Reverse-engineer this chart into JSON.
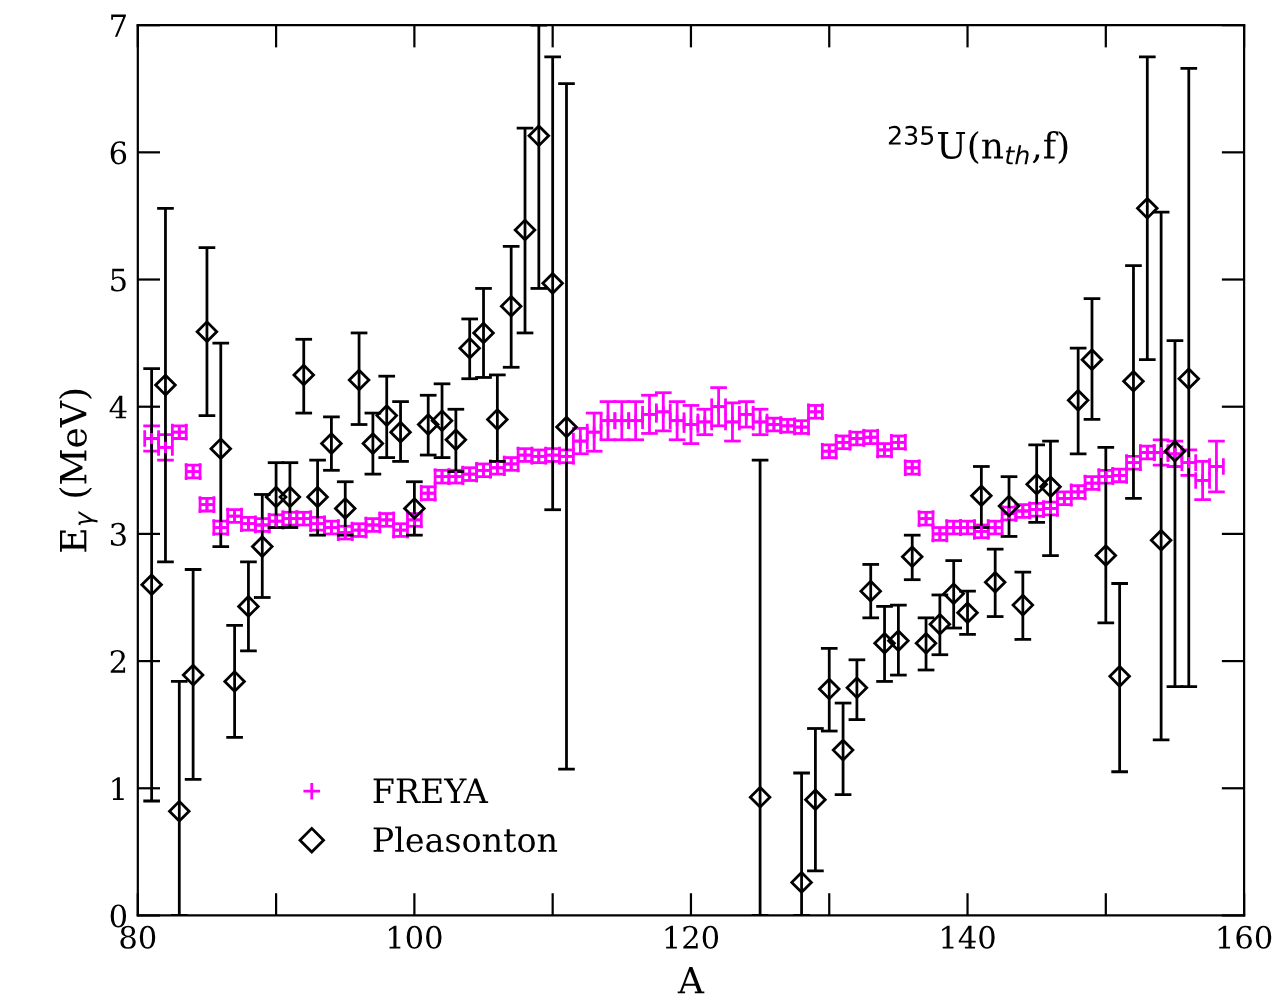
{
  "chart_data": {
    "type": "scatter",
    "xlabel": "A",
    "ylabel": "E$_{γ}$ (MeV)",
    "annotations": [
      "$^{235}$U(n$_{th}$,f)"
    ],
    "xlim": [
      80,
      160
    ],
    "ylim": [
      0,
      7
    ],
    "xticks": [
      80,
      {
        "value": 90,
        "label": null
      },
      100,
      {
        "value": 110,
        "label": null
      },
      120,
      {
        "value": 130,
        "label": null
      },
      140,
      {
        "value": 150,
        "label": null
      },
      160
    ],
    "yticks": [
      0,
      1,
      2,
      3,
      4,
      5,
      6,
      7
    ],
    "grid": false,
    "legend": "bottom left",
    "series": [
      {
        "name": "FREYA",
        "color": "#ff00ff",
        "marker": "cross",
        "x": [
          81,
          82,
          83,
          84,
          85,
          86,
          87,
          88,
          89,
          90,
          91,
          92,
          93,
          94,
          95,
          96,
          97,
          98,
          99,
          100,
          101,
          102,
          103,
          104,
          105,
          106,
          107,
          108,
          109,
          110,
          111,
          112,
          113,
          114,
          115,
          116,
          117,
          118,
          119,
          120,
          121,
          122,
          123,
          124,
          125,
          126,
          127,
          128,
          129,
          130,
          131,
          132,
          133,
          134,
          135,
          136,
          137,
          138,
          139,
          140,
          141,
          142,
          143,
          144,
          145,
          146,
          147,
          148,
          149,
          150,
          151,
          152,
          153,
          154,
          155,
          156,
          157,
          158
        ],
        "values": [
          3.75,
          3.68,
          3.8,
          3.49,
          3.23,
          3.05,
          3.14,
          3.08,
          3.07,
          3.1,
          3.12,
          3.12,
          3.08,
          3.05,
          3.01,
          3.03,
          3.07,
          3.11,
          3.03,
          3.11,
          3.32,
          3.45,
          3.45,
          3.47,
          3.5,
          3.52,
          3.55,
          3.62,
          3.61,
          3.62,
          3.61,
          3.73,
          3.8,
          3.89,
          3.89,
          3.89,
          3.94,
          3.96,
          3.89,
          3.86,
          3.88,
          4.0,
          3.88,
          3.94,
          3.88,
          3.86,
          3.85,
          3.84,
          3.96,
          3.65,
          3.72,
          3.75,
          3.76,
          3.66,
          3.72,
          3.52,
          3.12,
          3.0,
          3.05,
          3.05,
          3.02,
          3.05,
          3.16,
          3.18,
          3.19,
          3.2,
          3.28,
          3.33,
          3.4,
          3.45,
          3.46,
          3.56,
          3.64,
          3.64,
          3.63,
          3.56,
          3.42,
          3.53
        ],
        "errors": [
          0.1,
          0.1,
          0.05,
          0.05,
          0.05,
          0.05,
          0.05,
          0.05,
          0.05,
          0.05,
          0.05,
          0.05,
          0.05,
          0.05,
          0.05,
          0.05,
          0.05,
          0.05,
          0.05,
          0.05,
          0.05,
          0.05,
          0.05,
          0.05,
          0.05,
          0.05,
          0.05,
          0.05,
          0.05,
          0.05,
          0.05,
          0.1,
          0.15,
          0.15,
          0.15,
          0.15,
          0.15,
          0.15,
          0.15,
          0.15,
          0.1,
          0.15,
          0.15,
          0.1,
          0.1,
          0.05,
          0.05,
          0.05,
          0.05,
          0.05,
          0.05,
          0.05,
          0.05,
          0.05,
          0.05,
          0.05,
          0.05,
          0.05,
          0.05,
          0.05,
          0.05,
          0.05,
          0.05,
          0.05,
          0.05,
          0.05,
          0.05,
          0.05,
          0.05,
          0.05,
          0.05,
          0.05,
          0.05,
          0.1,
          0.1,
          0.1,
          0.15,
          0.2
        ],
        "xerrors": [
          0.5,
          0.5,
          0.5,
          0.5,
          0.5,
          0.5,
          0.5,
          0.5,
          0.5,
          0.5,
          0.5,
          0.5,
          0.5,
          0.5,
          0.5,
          0.5,
          0.5,
          0.5,
          0.5,
          0.5,
          0.5,
          0.5,
          0.5,
          0.5,
          0.5,
          0.5,
          0.5,
          0.5,
          0.5,
          0.5,
          0.5,
          0.5,
          0.5,
          0.5,
          0.5,
          0.5,
          0.5,
          0.5,
          0.5,
          0.5,
          0.5,
          0.5,
          0.5,
          0.5,
          0.5,
          0.5,
          0.5,
          0.5,
          0.5,
          0.5,
          0.5,
          0.5,
          0.5,
          0.5,
          0.5,
          0.5,
          0.5,
          0.5,
          0.5,
          0.5,
          0.5,
          0.5,
          0.5,
          0.5,
          0.5,
          0.5,
          0.5,
          0.5,
          0.5,
          0.5,
          0.5,
          0.5,
          0.5,
          0.5,
          0.5,
          0.5,
          0.5,
          0.5
        ]
      },
      {
        "name": "Pleasonton",
        "color": "#000000",
        "marker": "diamond",
        "x": [
          81,
          82,
          83,
          84,
          85,
          86,
          87,
          88,
          89,
          90,
          91,
          92,
          93,
          94,
          95,
          96,
          97,
          98,
          99,
          100,
          101,
          102,
          103,
          104,
          105,
          106,
          107,
          108,
          109,
          110,
          111,
          125,
          128,
          129,
          130,
          131,
          132,
          133,
          134,
          135,
          136,
          137,
          138,
          139,
          140,
          141,
          142,
          143,
          144,
          145,
          146,
          148,
          149,
          150,
          151,
          152,
          153,
          154,
          155,
          156
        ],
        "values": [
          2.6,
          4.17,
          0.82,
          1.89,
          4.59,
          3.67,
          1.84,
          2.43,
          2.9,
          3.29,
          3.29,
          4.25,
          3.29,
          3.71,
          3.2,
          4.21,
          3.71,
          3.93,
          3.8,
          3.2,
          3.86,
          3.89,
          3.74,
          4.46,
          4.58,
          3.9,
          4.79,
          5.39,
          6.13,
          4.97,
          3.84,
          0.93,
          0.26,
          0.91,
          1.78,
          1.3,
          1.79,
          2.55,
          2.14,
          2.16,
          2.82,
          2.14,
          2.29,
          2.53,
          2.38,
          3.3,
          2.62,
          3.22,
          2.44,
          3.39,
          3.37,
          4.05,
          4.37,
          2.83,
          1.88,
          4.2,
          5.56,
          2.95,
          3.65,
          4.22
        ],
        "errors": [
          [
            0.9,
            4.3
          ],
          [
            2.78,
            5.56
          ],
          [
            0,
            1.84
          ],
          [
            1.07,
            2.72
          ],
          [
            3.93,
            5.25
          ],
          [
            2.9,
            4.5
          ],
          [
            1.4,
            2.28
          ],
          [
            2.08,
            2.78
          ],
          [
            2.5,
            3.31
          ],
          [
            3.05,
            3.56
          ],
          [
            3.05,
            3.56
          ],
          [
            3.95,
            4.53
          ],
          [
            2.99,
            3.58
          ],
          [
            3.5,
            3.92
          ],
          [
            2.99,
            3.41
          ],
          [
            3.86,
            4.58
          ],
          [
            3.47,
            3.95
          ],
          [
            3.6,
            4.24
          ],
          [
            3.57,
            4.04
          ],
          [
            2.99,
            3.41
          ],
          [
            3.62,
            4.09
          ],
          [
            3.6,
            4.18
          ],
          [
            3.49,
            3.98
          ],
          [
            4.22,
            4.69
          ],
          [
            4.23,
            4.93
          ],
          [
            3.57,
            4.25
          ],
          [
            4.31,
            5.26
          ],
          [
            4.58,
            6.19
          ],
          [
            4.93,
            7.0
          ],
          [
            3.19,
            6.75
          ],
          [
            1.15,
            6.54
          ],
          [
            0,
            3.58
          ],
          [
            0,
            1.12
          ],
          [
            0.35,
            1.47
          ],
          [
            1.45,
            2.1
          ],
          [
            0.95,
            1.67
          ],
          [
            1.54,
            2.01
          ],
          [
            2.34,
            2.76
          ],
          [
            1.84,
            2.43
          ],
          [
            1.89,
            2.44
          ],
          [
            2.64,
            2.99
          ],
          [
            1.93,
            2.34
          ],
          [
            2.05,
            2.52
          ],
          [
            2.26,
            2.79
          ],
          [
            2.21,
            2.55
          ],
          [
            3.05,
            3.53
          ],
          [
            2.35,
            2.88
          ],
          [
            2.98,
            3.45
          ],
          [
            2.17,
            2.7
          ],
          [
            3.09,
            3.7
          ],
          [
            2.83,
            3.73
          ],
          [
            3.63,
            4.46
          ],
          [
            3.9,
            4.85
          ],
          [
            2.3,
            3.68
          ],
          [
            1.13,
            2.61
          ],
          [
            3.28,
            5.11
          ],
          [
            4.37,
            6.75
          ],
          [
            1.38,
            5.53
          ],
          [
            1.8,
            4.52
          ],
          [
            1.8,
            6.66
          ]
        ]
      }
    ]
  }
}
